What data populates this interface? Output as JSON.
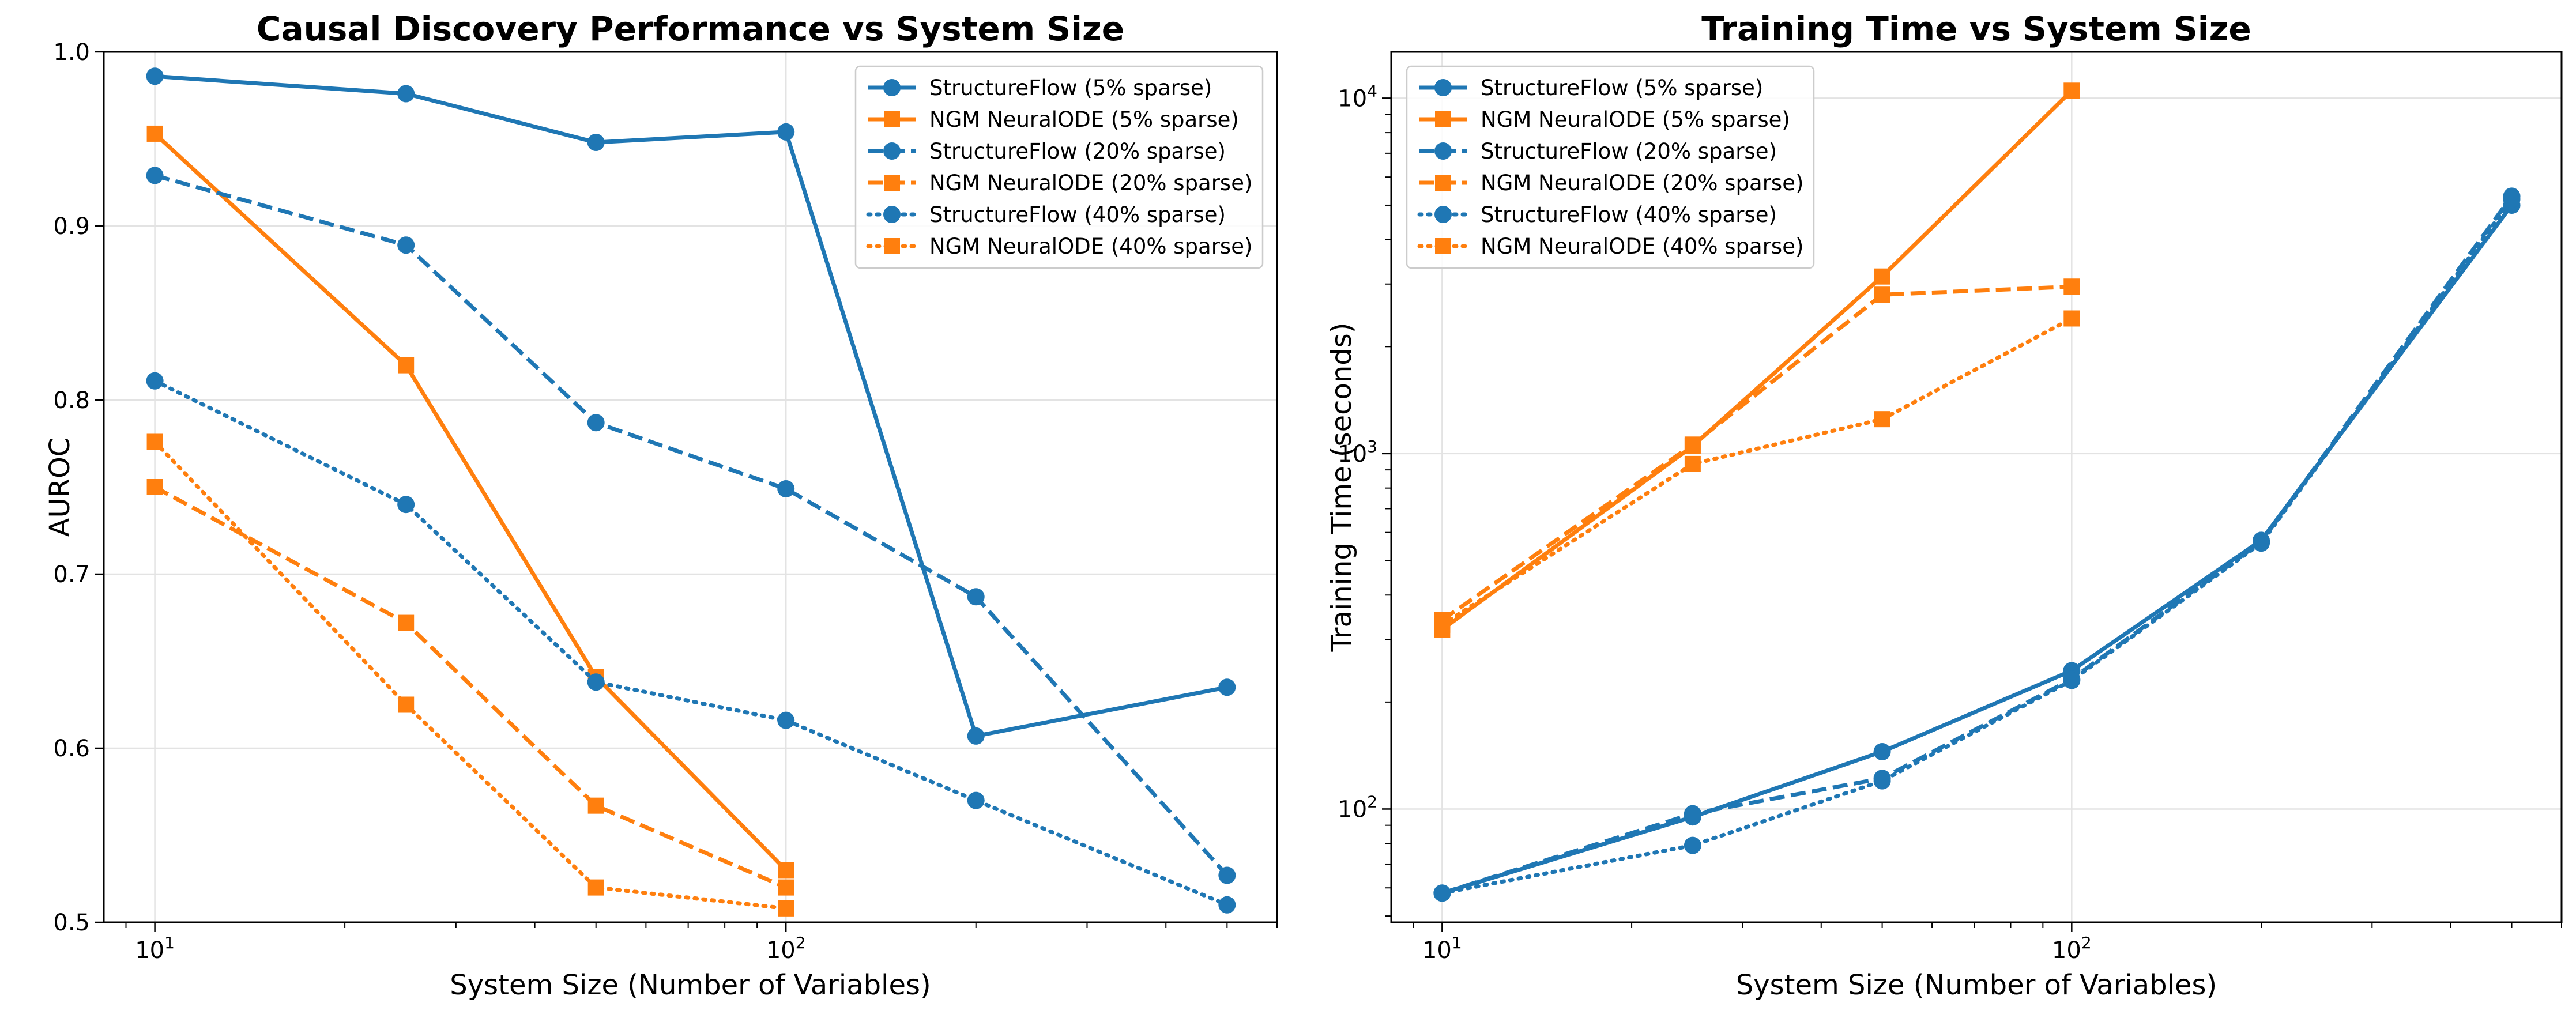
{
  "colors": {
    "structureflow": "#1f77b4",
    "ngm": "#ff7f0e",
    "grid": "#e3e3e3",
    "axis": "#000000",
    "legend_border": "#cccccc"
  },
  "chart_data": [
    {
      "type": "line",
      "title": "Causal Discovery Performance vs System Size",
      "xlabel": "System Size (Number of Variables)",
      "ylabel": "AUROC",
      "xscale": "log",
      "yscale": "linear",
      "xlim": [
        8.3,
        600
      ],
      "ylim": [
        0.5,
        1.0
      ],
      "x_ticks": [
        {
          "value": 10,
          "base": "10",
          "exp": "1"
        },
        {
          "value": 100,
          "base": "10",
          "exp": "2"
        }
      ],
      "y_ticks": [
        {
          "value": 0.5,
          "label": "0.5"
        },
        {
          "value": 0.6,
          "label": "0.6"
        },
        {
          "value": 0.7,
          "label": "0.7"
        },
        {
          "value": 0.8,
          "label": "0.8"
        },
        {
          "value": 0.9,
          "label": "0.9"
        },
        {
          "value": 1.0,
          "label": "1.0"
        }
      ],
      "grid": true,
      "legend_position": "top-right",
      "series": [
        {
          "name": "StructureFlow (5% sparse)",
          "color": "structureflow",
          "marker": "circle",
          "dash": "solid",
          "x": [
            10,
            25,
            50,
            100,
            200,
            500
          ],
          "y": [
            0.986,
            0.976,
            0.948,
            0.954,
            0.607,
            0.635
          ]
        },
        {
          "name": "NGM NeuralODE (5% sparse)",
          "color": "ngm",
          "marker": "square",
          "dash": "solid",
          "x": [
            10,
            25,
            50,
            100
          ],
          "y": [
            0.953,
            0.82,
            0.641,
            0.53
          ]
        },
        {
          "name": "StructureFlow (20% sparse)",
          "color": "structureflow",
          "marker": "circle",
          "dash": "dashed",
          "x": [
            10,
            25,
            50,
            100,
            200,
            500
          ],
          "y": [
            0.929,
            0.889,
            0.787,
            0.749,
            0.687,
            0.527
          ]
        },
        {
          "name": "NGM NeuralODE (20% sparse)",
          "color": "ngm",
          "marker": "square",
          "dash": "dashed",
          "x": [
            10,
            25,
            50,
            100
          ],
          "y": [
            0.75,
            0.672,
            0.567,
            0.52
          ]
        },
        {
          "name": "StructureFlow (40% sparse)",
          "color": "structureflow",
          "marker": "circle",
          "dash": "dotted",
          "x": [
            10,
            25,
            50,
            100,
            200,
            500
          ],
          "y": [
            0.811,
            0.74,
            0.638,
            0.616,
            0.57,
            0.51
          ]
        },
        {
          "name": "NGM NeuralODE (40% sparse)",
          "color": "ngm",
          "marker": "square",
          "dash": "dotted",
          "x": [
            10,
            25,
            50,
            100
          ],
          "y": [
            0.776,
            0.625,
            0.52,
            0.508
          ]
        }
      ]
    },
    {
      "type": "line",
      "title": "Training Time vs System Size",
      "xlabel": "System Size (Number of Variables)",
      "ylabel": "Training Time (seconds)",
      "xscale": "log",
      "yscale": "log",
      "xlim": [
        8.3,
        600
      ],
      "ylim": [
        48,
        13500
      ],
      "x_ticks": [
        {
          "value": 10,
          "base": "10",
          "exp": "1"
        },
        {
          "value": 100,
          "base": "10",
          "exp": "2"
        }
      ],
      "y_ticks": [
        {
          "value": 100,
          "base": "10",
          "exp": "2"
        },
        {
          "value": 1000,
          "base": "10",
          "exp": "3"
        },
        {
          "value": 10000,
          "base": "10",
          "exp": "4"
        }
      ],
      "grid": true,
      "legend_position": "top-left",
      "series": [
        {
          "name": "StructureFlow (5% sparse)",
          "color": "structureflow",
          "marker": "circle",
          "dash": "solid",
          "x": [
            10,
            25,
            50,
            100,
            200,
            500
          ],
          "y": [
            58,
            95,
            145,
            245,
            570,
            5000
          ]
        },
        {
          "name": "NGM NeuralODE (5% sparse)",
          "color": "ngm",
          "marker": "square",
          "dash": "solid",
          "x": [
            10,
            25,
            50,
            100
          ],
          "y": [
            320,
            1050,
            3150,
            10500
          ]
        },
        {
          "name": "StructureFlow (20% sparse)",
          "color": "structureflow",
          "marker": "circle",
          "dash": "dashed",
          "x": [
            10,
            25,
            50,
            100,
            200,
            500
          ],
          "y": [
            58,
            97,
            122,
            232,
            565,
            5300
          ]
        },
        {
          "name": "NGM NeuralODE (20% sparse)",
          "color": "ngm",
          "marker": "square",
          "dash": "dashed",
          "x": [
            10,
            25,
            50,
            100
          ],
          "y": [
            340,
            1060,
            2800,
            2950
          ]
        },
        {
          "name": "StructureFlow (40% sparse)",
          "color": "structureflow",
          "marker": "circle",
          "dash": "dotted",
          "x": [
            10,
            25,
            50,
            100,
            200,
            500
          ],
          "y": [
            58,
            79,
            120,
            230,
            560,
            5200
          ]
        },
        {
          "name": "NGM NeuralODE (40% sparse)",
          "color": "ngm",
          "marker": "square",
          "dash": "dotted",
          "x": [
            10,
            25,
            50,
            100
          ],
          "y": [
            330,
            935,
            1250,
            2400
          ]
        }
      ]
    }
  ]
}
